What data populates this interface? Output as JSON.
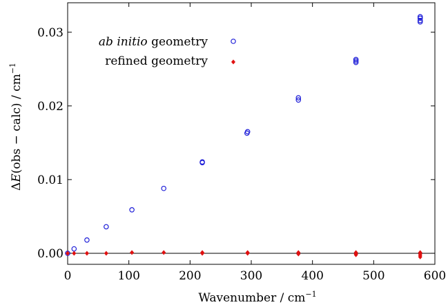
{
  "chart_data": {
    "type": "scatter",
    "xlim": [
      0,
      600
    ],
    "ylim": [
      -0.0015,
      0.034
    ],
    "x_ticks": [
      0,
      100,
      200,
      300,
      400,
      500,
      600
    ],
    "x_tick_labels": [
      "0",
      "100",
      "200",
      "300",
      "400",
      "500",
      "600"
    ],
    "y_ticks": [
      0.0,
      0.01,
      0.02,
      0.03
    ],
    "y_tick_labels": [
      "0.00",
      "0.01",
      "0.02",
      "0.03"
    ],
    "xlabel": {
      "main": "Wavenumber / cm",
      "sup": "−1"
    },
    "ylabel": {
      "delta": "Δ",
      "var": "E",
      "main": "(obs − calc) / cm",
      "sup": "−1"
    },
    "zero_line": true,
    "legend_position": "top-left",
    "series": [
      {
        "name": "ab initio geometry",
        "name_italic": "ab initio",
        "name_rest": " geometry",
        "color": "#1f1fd8",
        "marker": "open-circle",
        "points": [
          [
            0,
            0.0
          ],
          [
            10.5,
            0.0006
          ],
          [
            31.5,
            0.0018
          ],
          [
            63,
            0.0036
          ],
          [
            105,
            0.0059
          ],
          [
            157,
            0.0088
          ],
          [
            220,
            0.0123
          ],
          [
            220,
            0.0124
          ],
          [
            293,
            0.0163
          ],
          [
            294,
            0.0165
          ],
          [
            377,
            0.0208
          ],
          [
            377,
            0.0211
          ],
          [
            471,
            0.0259
          ],
          [
            471,
            0.0261
          ],
          [
            471,
            0.0263
          ],
          [
            576,
            0.0314
          ],
          [
            576,
            0.0316
          ],
          [
            576,
            0.0319
          ],
          [
            576,
            0.0321
          ]
        ]
      },
      {
        "name": "refined geometry",
        "color": "#e01010",
        "marker": "filled-diamond",
        "points": [
          [
            0,
            0.0
          ],
          [
            10.5,
            0.0
          ],
          [
            31.5,
            0.0
          ],
          [
            63,
            0.0
          ],
          [
            105,
            0.0001
          ],
          [
            157,
            0.0001
          ],
          [
            220,
            0.0001
          ],
          [
            220,
            0.0
          ],
          [
            294,
            0.0001
          ],
          [
            294,
            0.0
          ],
          [
            377,
            0.0001
          ],
          [
            377,
            -0.0001
          ],
          [
            471,
            0.0001
          ],
          [
            471,
            -0.0001
          ],
          [
            471,
            -0.0002
          ],
          [
            576,
            0.0001
          ],
          [
            576,
            -0.0001
          ],
          [
            576,
            -0.0003
          ],
          [
            576,
            -0.0005
          ]
        ]
      }
    ]
  }
}
